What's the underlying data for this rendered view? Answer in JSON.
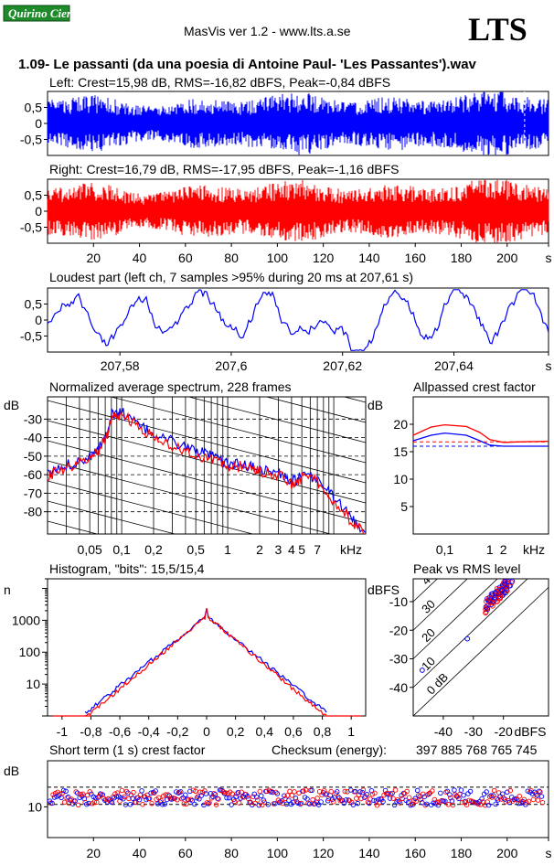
{
  "header": {
    "logo_text": "Quirino Cieri",
    "app_title": "MasVis ver 1.2 - www.lts.a.se",
    "brand": "LTS",
    "track_title": "1.09- Le passanti (da una poesia di Antoine Paul- 'Les Passantes').wav"
  },
  "colors": {
    "left": "#0000ff",
    "right": "#ff0000",
    "logo": "#1e8a2a"
  },
  "chart_data": [
    {
      "id": "left-waveform",
      "type": "area",
      "title": "Left: Crest=15,98 dB, RMS=-16,82 dBFS, Peak=-0,84 dBFS",
      "series": [
        {
          "name": "Left",
          "color": "#0000ff"
        }
      ],
      "y_ticks": [
        "0,5",
        "0",
        "-0,5"
      ],
      "ylim": [
        -1,
        1
      ],
      "xlim": [
        0,
        218
      ],
      "marker_x": 207.6
    },
    {
      "id": "right-waveform",
      "type": "area",
      "title": "Right: Crest=16,79 dB, RMS=-17,95 dBFS, Peak=-1,16 dBFS",
      "series": [
        {
          "name": "Right",
          "color": "#ff0000"
        }
      ],
      "y_ticks": [
        "0,5",
        "0",
        "-0,5"
      ],
      "ylim": [
        -1,
        1
      ],
      "x_ticks": [
        "20",
        "40",
        "60",
        "80",
        "100",
        "120",
        "140",
        "160",
        "180",
        "200",
        "s"
      ],
      "xlim": [
        0,
        218
      ]
    },
    {
      "id": "loudest-part",
      "type": "line",
      "title": "Loudest part (left  ch, 7 samples >95% during 20 ms at 207,61 s)",
      "y_ticks": [
        "0,5",
        "0",
        "-0,5"
      ],
      "x_ticks": [
        "207,58",
        "207,6",
        "207,62",
        "207,64",
        "s"
      ],
      "xlim": [
        207.567,
        207.657
      ],
      "ylim": [
        -1,
        1
      ]
    },
    {
      "id": "avg-spectrum",
      "type": "line",
      "title": "Normalized average spectrum, 228 frames",
      "ylabel": "dB",
      "y_ticks": [
        "-30",
        "-40",
        "-50",
        "-60",
        "-70",
        "-80"
      ],
      "x_ticks": [
        "0,05",
        "0,1",
        "0,2",
        "0,5",
        "1",
        "2",
        "3",
        "4",
        "5",
        "7",
        "kHz"
      ],
      "xlim_khz": [
        0.02,
        20
      ],
      "ylim": [
        -92,
        -18
      ],
      "left": [
        [
          0.02,
          -60
        ],
        [
          0.03,
          -55
        ],
        [
          0.05,
          -50
        ],
        [
          0.07,
          -40
        ],
        [
          0.08,
          -28
        ],
        [
          0.1,
          -26
        ],
        [
          0.15,
          -34
        ],
        [
          0.2,
          -38
        ],
        [
          0.3,
          -42
        ],
        [
          0.5,
          -47
        ],
        [
          0.7,
          -50
        ],
        [
          1,
          -54
        ],
        [
          1.5,
          -55
        ],
        [
          2,
          -57
        ],
        [
          3,
          -59
        ],
        [
          4,
          -64
        ],
        [
          5,
          -61
        ],
        [
          7,
          -62
        ],
        [
          10,
          -72
        ],
        [
          15,
          -84
        ],
        [
          20,
          -91
        ]
      ],
      "right": [
        [
          0.02,
          -61
        ],
        [
          0.03,
          -56
        ],
        [
          0.05,
          -52
        ],
        [
          0.07,
          -42
        ],
        [
          0.08,
          -30
        ],
        [
          0.1,
          -27
        ],
        [
          0.15,
          -35
        ],
        [
          0.2,
          -40
        ],
        [
          0.3,
          -44
        ],
        [
          0.5,
          -49
        ],
        [
          0.7,
          -52
        ],
        [
          1,
          -55
        ],
        [
          1.5,
          -56
        ],
        [
          2,
          -58
        ],
        [
          3,
          -60
        ],
        [
          4,
          -65
        ],
        [
          5,
          -62
        ],
        [
          7,
          -63
        ],
        [
          10,
          -74
        ],
        [
          15,
          -86
        ],
        [
          20,
          -92
        ]
      ]
    },
    {
      "id": "allpassed-crest",
      "type": "line",
      "title": "Allpassed crest factor",
      "ylabel": "dB",
      "y_ticks": [
        "20",
        "15",
        "10",
        "5"
      ],
      "x_ticks": [
        "0,1",
        "1",
        "2",
        "kHz"
      ],
      "xlim_khz": [
        0.02,
        20
      ],
      "ylim": [
        0,
        25
      ],
      "left": [
        [
          0.02,
          17
        ],
        [
          0.05,
          18
        ],
        [
          0.1,
          18.4
        ],
        [
          0.3,
          18
        ],
        [
          0.6,
          17
        ],
        [
          1,
          16.2
        ],
        [
          2,
          16
        ],
        [
          5,
          16
        ],
        [
          20,
          16
        ]
      ],
      "right": [
        [
          0.02,
          18
        ],
        [
          0.05,
          19.5
        ],
        [
          0.1,
          19.9
        ],
        [
          0.3,
          19.6
        ],
        [
          0.6,
          18.5
        ],
        [
          1,
          17.2
        ],
        [
          2,
          16.7
        ],
        [
          5,
          16.8
        ],
        [
          20,
          16.9
        ]
      ],
      "reference_left": 16,
      "reference_right": 16.8
    },
    {
      "id": "histogram",
      "type": "line",
      "title": "Histogram, \"bits\": 15,5/15,4",
      "ylabel": "n",
      "y_ticks": [
        "1000",
        "100",
        "10"
      ],
      "x_ticks": [
        "-1",
        "-0,8",
        "-0,6",
        "-0,4",
        "-0,2",
        "0",
        "0,2",
        "0,4",
        "0,6",
        "0,8",
        "1"
      ],
      "xlim": [
        -1.1,
        1.1
      ],
      "ylim_log": [
        1,
        20000
      ],
      "peak_count": 1400
    },
    {
      "id": "peak-vs-rms",
      "type": "scatter",
      "title": "Peak vs RMS level",
      "ylabel": "dBFS",
      "xlabel": "dBFS",
      "y_ticks": [
        "-10",
        "-20",
        "-30",
        "-40"
      ],
      "x_ticks": [
        "-40",
        "-30",
        "-20"
      ],
      "diagonal_labels": [
        "0 dB",
        "10",
        "20",
        "30",
        "40"
      ],
      "xlim": [
        -50,
        -5
      ],
      "ylim": [
        -50,
        -2
      ]
    },
    {
      "id": "short-term-crest",
      "type": "scatter",
      "title": "Short term (1 s) crest factor",
      "ylabel": "dB",
      "y_ticks": [
        "10"
      ],
      "x_ticks": [
        "20",
        "40",
        "60",
        "80",
        "100",
        "120",
        "140",
        "160",
        "180",
        "200",
        "s"
      ],
      "checksum_label": "Checksum (energy):",
      "checksum_value": "397 885 768 765 745",
      "xlim": [
        0,
        218
      ],
      "ylim": [
        0,
        25
      ],
      "dashed_levels": [
        16.4,
        10.8
      ]
    }
  ]
}
